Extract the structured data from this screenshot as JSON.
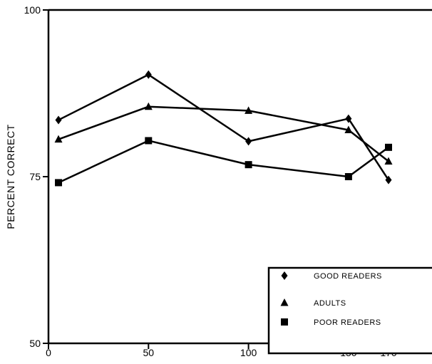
{
  "chart_data": {
    "type": "line",
    "title": "",
    "xlabel": "",
    "ylabel": "PERCENT CORRECT",
    "xlim": [
      0,
      190
    ],
    "ylim": [
      50,
      100
    ],
    "x_ticks": [
      0,
      50,
      100,
      150,
      170
    ],
    "y_ticks": [
      50,
      75,
      100
    ],
    "grid": false,
    "legend_position": "bottom-right",
    "series": [
      {
        "name": "GOOD READERS",
        "marker": "diamond",
        "x": [
          5,
          50,
          100,
          150,
          170
        ],
        "y": [
          83.5,
          90.3,
          80.3,
          83.7,
          74.5
        ]
      },
      {
        "name": "ADULTS",
        "marker": "triangle",
        "x": [
          5,
          50,
          100,
          150,
          170
        ],
        "y": [
          80.6,
          85.5,
          84.9,
          82.0,
          77.3
        ]
      },
      {
        "name": "POOR READERS",
        "marker": "square",
        "x": [
          5,
          50,
          100,
          150,
          170
        ],
        "y": [
          74.1,
          80.4,
          76.8,
          75.0,
          79.4
        ]
      }
    ]
  }
}
